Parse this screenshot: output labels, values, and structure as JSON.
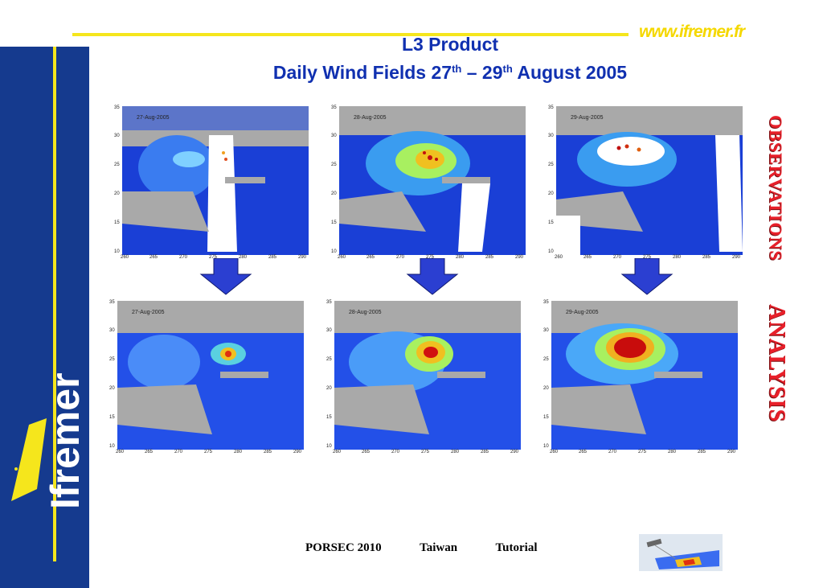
{
  "header": {
    "url": "www.ifremer.fr",
    "title_line1": "L3 Product",
    "title_line2_pre": "Daily Wind Fields 27",
    "title_sup1": "th",
    "title_mid": " – 29",
    "title_sup2": "th",
    "title_post": " August 2005"
  },
  "logo": {
    "text": "Ifremer"
  },
  "side_labels": {
    "observations": "OBSERVATIONS",
    "analysis": "ANALYSIS"
  },
  "panels": {
    "observations": [
      {
        "date": "27-Aug-2005"
      },
      {
        "date": "28-Aug-2005"
      },
      {
        "date": "29-Aug-2005"
      }
    ],
    "analysis": [
      {
        "date": "27-Aug-2005"
      },
      {
        "date": "28-Aug-2005"
      },
      {
        "date": "29-Aug-2005"
      }
    ]
  },
  "axes": {
    "y_ticks": [
      "35",
      "30",
      "25",
      "20",
      "15",
      "10"
    ],
    "x_ticks": [
      "260",
      "265",
      "270",
      "275",
      "280",
      "285",
      "290"
    ]
  },
  "footer": {
    "event": "PORSEC 2010",
    "place": "Taiwan",
    "kind": "Tutorial"
  },
  "colors": {
    "sidebar": "#153a8e",
    "accent_yellow": "#f5e61c",
    "title": "#1030b0",
    "label_red": "#e8202a",
    "arrow": "#2b3fd1"
  }
}
